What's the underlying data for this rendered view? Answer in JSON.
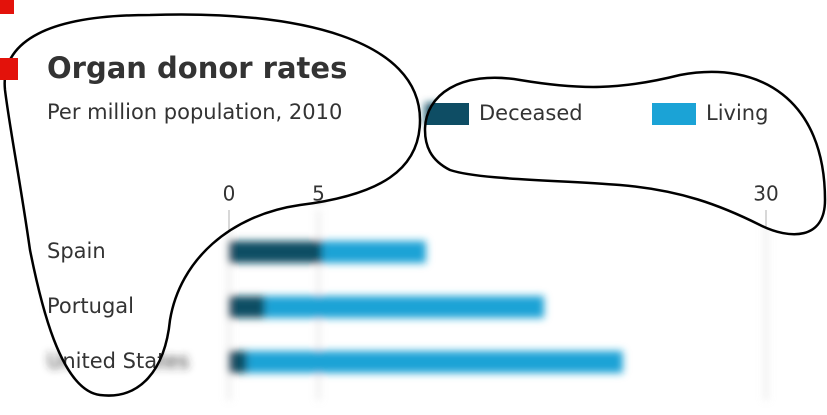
{
  "chart_data": {
    "type": "bar",
    "title": "Organ donor rates",
    "subtitle": "Per million population, 2010",
    "categories": [
      "Spain",
      "Portugal",
      "United States"
    ],
    "series": [
      {
        "name": "Deceased",
        "color": "#0e4d64",
        "values": [
          5.2,
          2,
          1
        ]
      },
      {
        "name": "Living",
        "color": "#1ba3d6",
        "values": [
          5.8,
          15.6,
          21
        ]
      }
    ],
    "xlim": [
      0,
      30
    ],
    "xticks": [
      0,
      5,
      30
    ],
    "grid": true
  }
}
